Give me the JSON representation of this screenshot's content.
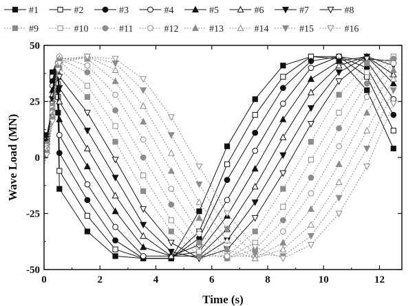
{
  "chart_data": {
    "type": "line",
    "title": "",
    "xlabel": "Time (s)",
    "ylabel": "Wave Load (MN)",
    "xlim": [
      0,
      12.8
    ],
    "ylim": [
      -50,
      50
    ],
    "xticks": [
      0,
      2,
      4,
      6,
      8,
      10,
      12
    ],
    "yticks": [
      -50,
      -25,
      0,
      25,
      50
    ],
    "grid": false,
    "legend": "top",
    "x": [
      0,
      0.1,
      0.2,
      0.3,
      0.4,
      0.5,
      0.55,
      1.55,
      2.55,
      3.55,
      4.55,
      5.55,
      6.55,
      7.55,
      8.55,
      9.55,
      10.55,
      11.55,
      12.5
    ],
    "series": [
      {
        "name": "#1",
        "values": [
          5,
          10,
          16,
          38,
          41,
          20,
          -14,
          -33,
          -44,
          -45,
          -45,
          -24,
          5,
          26,
          41,
          45,
          44,
          30,
          4
        ]
      },
      {
        "name": "#2",
        "values": [
          4,
          9,
          16,
          36,
          41,
          27,
          -6,
          -26,
          -41,
          -45,
          -45,
          -33,
          -3,
          19,
          36,
          45,
          45,
          36,
          12
        ]
      },
      {
        "name": "#3",
        "values": [
          4,
          9,
          16,
          34,
          40,
          30,
          2,
          -19,
          -37,
          -45,
          -45,
          -36,
          -10,
          11,
          31,
          43,
          45,
          40,
          19
        ]
      },
      {
        "name": "#4",
        "values": [
          3,
          8,
          16,
          32,
          39,
          33,
          10,
          -12,
          -31,
          -44,
          -44,
          -39,
          -19,
          3,
          24,
          40,
          45,
          43,
          26
        ]
      },
      {
        "name": "#5",
        "values": [
          3,
          8,
          15,
          30,
          38,
          36,
          17,
          -4,
          -24,
          -40,
          -44,
          -42,
          -26,
          -5,
          17,
          35,
          43,
          45,
          33
        ]
      },
      {
        "name": "#6",
        "values": [
          2,
          7,
          15,
          28,
          37,
          38,
          25,
          4,
          -17,
          -35,
          -44,
          -44,
          -32,
          -13,
          9,
          29,
          41,
          45,
          37
        ]
      },
      {
        "name": "#7",
        "values": [
          2,
          7,
          14,
          26,
          36,
          39,
          31,
          12,
          -9,
          -30,
          -42,
          -45,
          -37,
          -20,
          1,
          22,
          38,
          45,
          41
        ]
      },
      {
        "name": "#8",
        "values": [
          1,
          6,
          14,
          24,
          35,
          41,
          36,
          20,
          -1,
          -23,
          -38,
          -45,
          -41,
          -27,
          -7,
          15,
          34,
          44,
          43
        ]
      },
      {
        "name": "#9",
        "values": [
          1,
          6,
          13,
          23,
          34,
          42,
          40,
          27,
          7,
          -15,
          -33,
          -44,
          -44,
          -33,
          -14,
          7,
          28,
          42,
          44
        ]
      },
      {
        "name": "#10",
        "values": [
          0,
          5,
          12,
          22,
          33,
          42,
          43,
          32,
          14,
          -8,
          -28,
          -42,
          -45,
          -38,
          -22,
          -1,
          20,
          38,
          45
        ]
      },
      {
        "name": "#11",
        "values": [
          0,
          4,
          11,
          21,
          32,
          42,
          44,
          38,
          21,
          0,
          -21,
          -38,
          -45,
          -41,
          -28,
          -9,
          13,
          33,
          44
        ]
      },
      {
        "name": "#12",
        "values": [
          -1,
          4,
          11,
          20,
          31,
          42,
          45,
          41,
          28,
          8,
          -14,
          -34,
          -44,
          -44,
          -33,
          -16,
          5,
          27,
          42
        ]
      },
      {
        "name": "#13",
        "values": [
          -1,
          3,
          10,
          19,
          30,
          41,
          44,
          44,
          34,
          16,
          -6,
          -27,
          -41,
          -45,
          -38,
          -23,
          -3,
          20,
          39
        ]
      },
      {
        "name": "#14",
        "values": [
          -2,
          3,
          9,
          18,
          29,
          41,
          44,
          45,
          39,
          23,
          2,
          -20,
          -37,
          -45,
          -41,
          -30,
          -11,
          12,
          35
        ]
      },
      {
        "name": "#15",
        "values": [
          -3,
          2,
          8,
          17,
          28,
          40,
          43,
          45,
          42,
          30,
          10,
          -12,
          -32,
          -43,
          -44,
          -35,
          -18,
          4,
          30
        ]
      },
      {
        "name": "#16",
        "values": [
          -4,
          1,
          7,
          16,
          27,
          39,
          42,
          45,
          44,
          35,
          18,
          -4,
          -25,
          -40,
          -45,
          -39,
          -25,
          -4,
          24
        ]
      }
    ]
  }
}
